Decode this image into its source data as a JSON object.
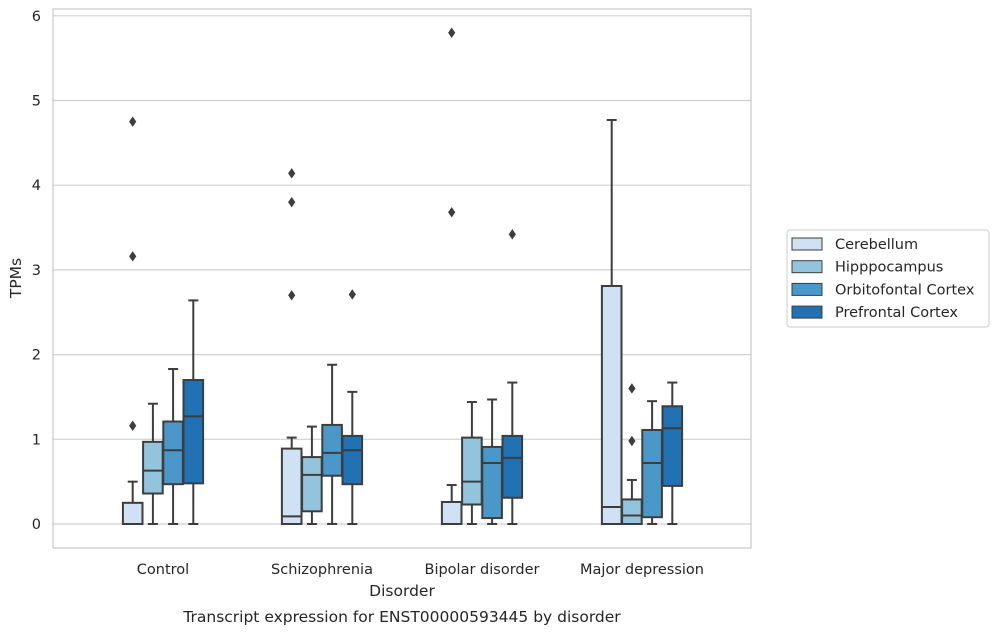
{
  "chart_data": {
    "type": "box",
    "title": "",
    "caption": "Transcript expression for ENST00000593445 by disorder",
    "xlabel": "Disorder",
    "ylabel": "TPMs",
    "ylim": [
      -0.28,
      6.1
    ],
    "yticks": [
      0,
      1,
      2,
      3,
      4,
      5,
      6
    ],
    "categories": [
      "Control",
      "Schizophrenia",
      "Bipolar disorder",
      "Major depression"
    ],
    "grid": "horizontal",
    "legend_position": "right",
    "series": [
      {
        "name": "Cerebellum",
        "color": "#cfe1f2",
        "boxes": [
          {
            "min": 0,
            "q1": 0,
            "median": 0,
            "q3": 0.25,
            "max": 0.5,
            "outliers": [
              1.16,
              3.16,
              4.75
            ]
          },
          {
            "min": 0,
            "q1": 0,
            "median": 0.09,
            "q3": 0.89,
            "max": 1.02,
            "outliers": [
              2.7,
              3.8,
              4.14
            ]
          },
          {
            "min": 0,
            "q1": 0,
            "median": 0,
            "q3": 0.26,
            "max": 0.46,
            "outliers": [
              3.68,
              5.8
            ]
          },
          {
            "min": 0,
            "q1": 0,
            "median": 0.2,
            "q3": 2.81,
            "max": 4.77,
            "outliers": []
          }
        ]
      },
      {
        "name": "Hipppocampus",
        "color": "#93c4de",
        "boxes": [
          {
            "min": 0,
            "q1": 0.36,
            "median": 0.63,
            "q3": 0.97,
            "max": 1.42,
            "outliers": []
          },
          {
            "min": 0,
            "q1": 0.15,
            "median": 0.58,
            "q3": 0.79,
            "max": 1.15,
            "outliers": []
          },
          {
            "min": 0,
            "q1": 0.23,
            "median": 0.5,
            "q3": 1.02,
            "max": 1.44,
            "outliers": []
          },
          {
            "min": 0,
            "q1": 0,
            "median": 0.1,
            "q3": 0.29,
            "max": 0.52,
            "outliers": [
              0.98,
              1.6
            ]
          }
        ]
      },
      {
        "name": "Orbitofontal Cortex",
        "color": "#4a98c9",
        "boxes": [
          {
            "min": 0,
            "q1": 0.47,
            "median": 0.87,
            "q3": 1.21,
            "max": 1.83,
            "outliers": []
          },
          {
            "min": 0,
            "q1": 0.57,
            "median": 0.84,
            "q3": 1.17,
            "max": 1.88,
            "outliers": []
          },
          {
            "min": 0,
            "q1": 0.07,
            "median": 0.72,
            "q3": 0.91,
            "max": 1.47,
            "outliers": []
          },
          {
            "min": 0,
            "q1": 0.08,
            "median": 0.72,
            "q3": 1.11,
            "max": 1.45,
            "outliers": []
          }
        ]
      },
      {
        "name": "Prefrontal Cortex",
        "color": "#2171b5",
        "boxes": [
          {
            "min": 0,
            "q1": 0.48,
            "median": 1.27,
            "q3": 1.7,
            "max": 2.64,
            "outliers": []
          },
          {
            "min": 0,
            "q1": 0.47,
            "median": 0.87,
            "q3": 1.04,
            "max": 1.56,
            "outliers": [
              2.71
            ]
          },
          {
            "min": 0,
            "q1": 0.31,
            "median": 0.78,
            "q3": 1.04,
            "max": 1.67,
            "outliers": [
              3.42
            ]
          },
          {
            "min": 0,
            "q1": 0.45,
            "median": 1.13,
            "q3": 1.39,
            "max": 1.67,
            "outliers": []
          }
        ]
      }
    ]
  }
}
